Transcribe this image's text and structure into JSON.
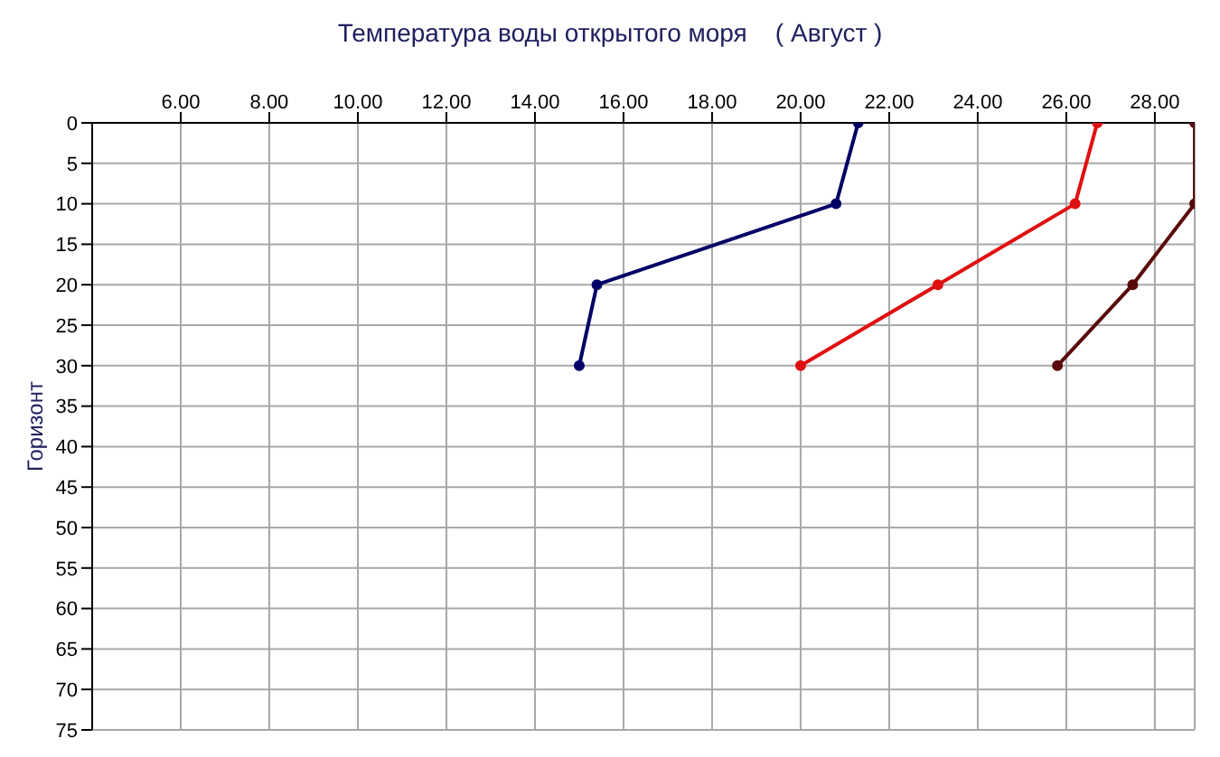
{
  "chart_data": {
    "type": "line",
    "title": "Температура воды открытого моря    ( Август )",
    "ylabel": "Горизонт",
    "series": [
      {
        "color": "#000066",
        "x": [
          21.3,
          20.8,
          15.4,
          15.0
        ],
        "values": [
          0,
          10,
          20,
          30
        ]
      },
      {
        "color": "#e01010",
        "x": [
          26.7,
          26.2,
          23.1,
          20.0
        ],
        "values": [
          0,
          10,
          20,
          30
        ]
      },
      {
        "color": "#5a0a0a",
        "x": [
          28.9,
          28.9,
          27.5,
          25.8
        ],
        "values": [
          0,
          10,
          20,
          30
        ]
      }
    ],
    "xlim": [
      4,
      28.9
    ],
    "xticks": [
      {
        "value": 6,
        "label": "6.00"
      },
      {
        "value": 8,
        "label": "8.00"
      },
      {
        "value": 10,
        "label": "10.00"
      },
      {
        "value": 12,
        "label": "12.00"
      },
      {
        "value": 14,
        "label": "14.00"
      },
      {
        "value": 16,
        "label": "16.00"
      },
      {
        "value": 18,
        "label": "18.00"
      },
      {
        "value": 20,
        "label": "20.00"
      },
      {
        "value": 22,
        "label": "22.00"
      },
      {
        "value": 24,
        "label": "24.00"
      },
      {
        "value": 26,
        "label": "26.00"
      },
      {
        "value": 28,
        "label": "28.00"
      }
    ],
    "ylim": [
      75,
      0
    ],
    "yticks": [
      0,
      5,
      10,
      15,
      20,
      25,
      30,
      35,
      40,
      45,
      50,
      55,
      60,
      65,
      70,
      75
    ],
    "grid": true,
    "marker": "circle",
    "line_style": "solid"
  }
}
